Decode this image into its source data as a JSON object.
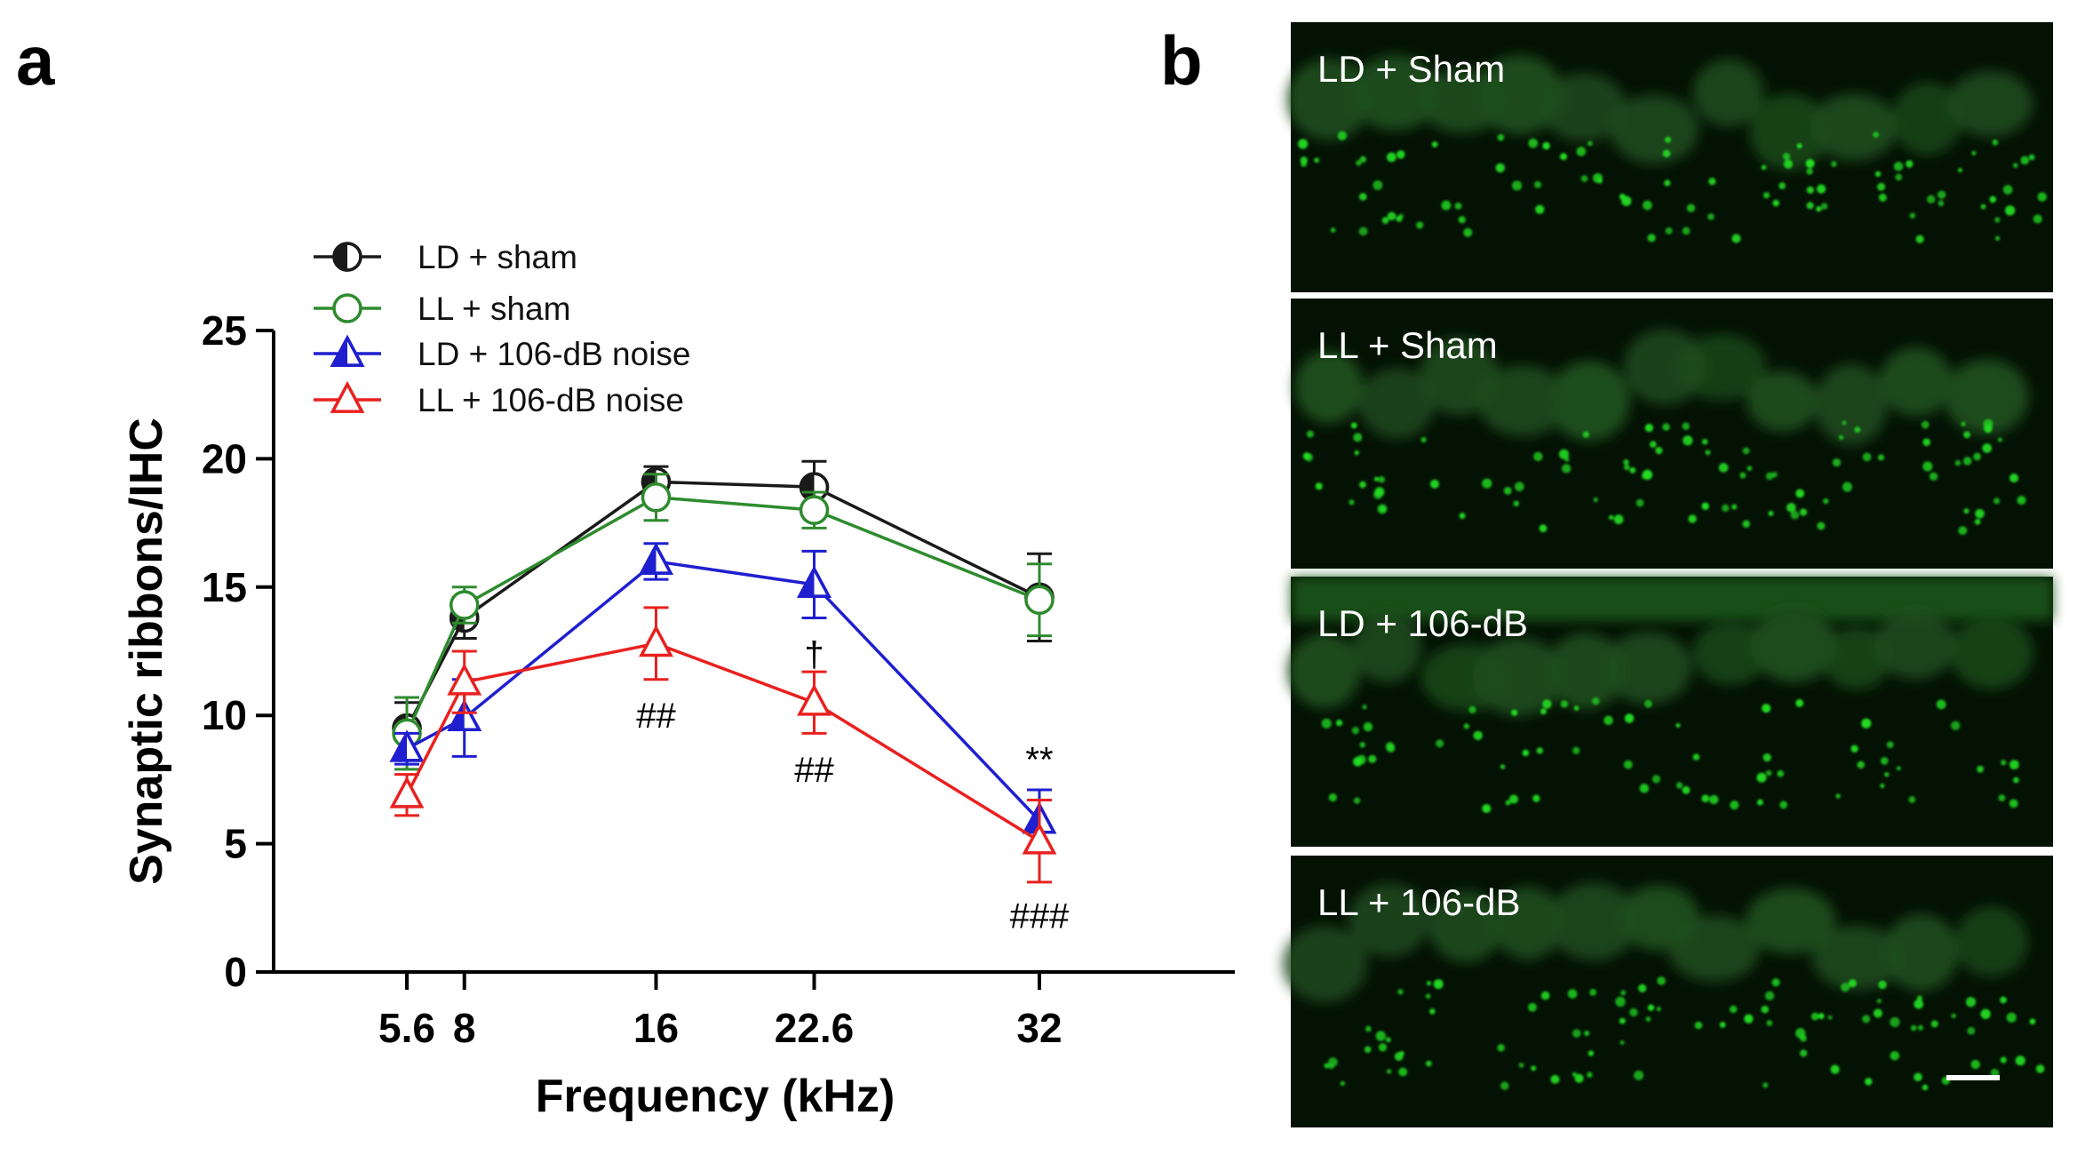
{
  "panel_a_label": "a",
  "panel_b_label": "b",
  "chart_data": {
    "type": "line",
    "title": "",
    "xlabel": "Frequency (kHz)",
    "ylabel": "Synaptic ribbons/IHC",
    "x": [
      5.6,
      8,
      16,
      22.6,
      32
    ],
    "x_tick_labels": [
      "5.6",
      "8",
      "16",
      "22.6",
      "32"
    ],
    "ylim": [
      0,
      25
    ],
    "y_ticks": [
      0,
      5,
      10,
      15,
      20,
      25
    ],
    "grid": false,
    "legend_position": "top-left",
    "series": [
      {
        "name": "LD + sham",
        "color": "#1a1a1a",
        "marker": "circle-half-filled",
        "values": [
          9.5,
          13.8,
          19.1,
          18.9,
          14.6
        ],
        "errors": [
          1.0,
          0.8,
          0.6,
          1.0,
          1.7
        ]
      },
      {
        "name": "LL + sham",
        "color": "#2e8b2e",
        "marker": "circle-open",
        "values": [
          9.3,
          14.3,
          18.5,
          18.0,
          14.5
        ],
        "errors": [
          1.4,
          0.7,
          0.9,
          0.7,
          1.4
        ]
      },
      {
        "name": "LD + 106-dB noise",
        "color": "#1f1fd0",
        "marker": "triangle-half-filled",
        "values": [
          8.7,
          9.9,
          16.0,
          15.1,
          5.9
        ],
        "errors": [
          0.6,
          1.5,
          0.7,
          1.3,
          1.2
        ]
      },
      {
        "name": "LL + 106-dB noise",
        "color": "#e8211f",
        "marker": "triangle-open",
        "values": [
          6.9,
          11.3,
          12.8,
          10.5,
          5.1
        ],
        "errors": [
          0.8,
          1.2,
          1.4,
          1.2,
          1.6
        ]
      }
    ],
    "annotations": [
      {
        "text": "##",
        "x": 16,
        "y": 10.0
      },
      {
        "text": "†",
        "x": 22.6,
        "y": 12.4
      },
      {
        "text": "##",
        "x": 22.6,
        "y": 7.9
      },
      {
        "text": "**",
        "x": 32,
        "y": 8.3
      },
      {
        "text": "###",
        "x": 32,
        "y": 2.2
      }
    ]
  },
  "micrographs": [
    {
      "label": "LD + Sham"
    },
    {
      "label": "LL + Sham"
    },
    {
      "label": "LD + 106-dB"
    },
    {
      "label": "LL + 106-dB"
    }
  ],
  "colors": {
    "micrograph_background": "#041204",
    "puncta": "#22dd22",
    "cell_body": "#1d4d1d"
  }
}
